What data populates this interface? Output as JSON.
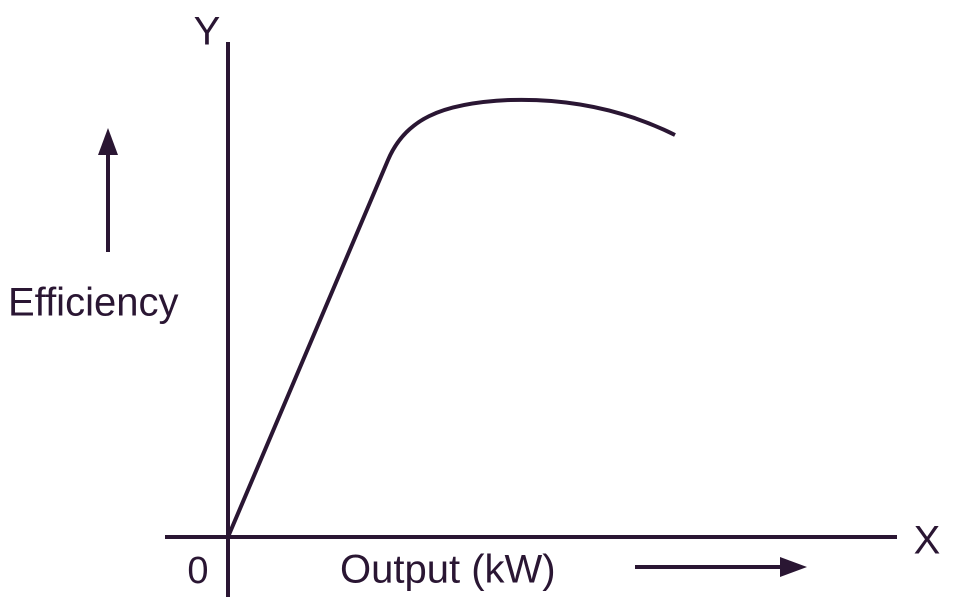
{
  "axes": {
    "y_label": "Y",
    "x_label": "X",
    "origin_label": "0"
  },
  "labels": {
    "y_title": "Efficiency",
    "x_title": "Output (kW)"
  }
}
